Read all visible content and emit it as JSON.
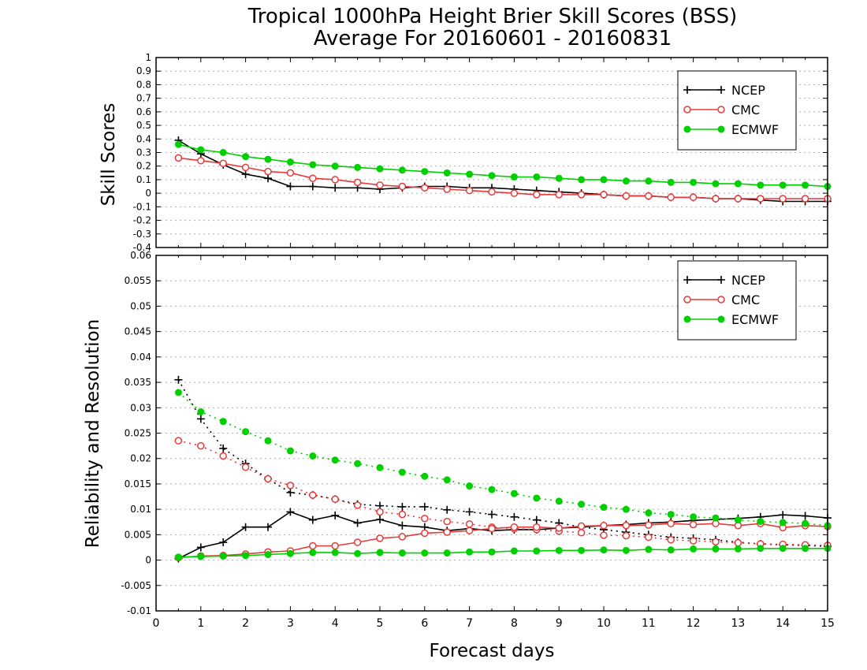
{
  "figure": {
    "title_line1": "Tropical 1000hPa Height Brier Skill Scores (BSS)",
    "title_line2": "Average For 20160601 - 20160831",
    "xlabel": "Forecast days"
  },
  "colors": {
    "NCEP": "#000000",
    "CMC": "#e8393a",
    "ECMWF": "#00d000",
    "grid": "#b0b0b0"
  },
  "chart_data": [
    {
      "type": "line",
      "ylabel": "Skill Scores",
      "xlim": [
        0,
        15
      ],
      "ylim": [
        -0.4,
        1
      ],
      "yticks": [
        -0.4,
        -0.3,
        -0.2,
        -0.1,
        0,
        0.1,
        0.2,
        0.3,
        0.4,
        0.5,
        0.6,
        0.7,
        0.8,
        0.9,
        1
      ],
      "ytick_labels": [
        "-0.4",
        "-0.3",
        "-0.2",
        "-0.1",
        "0",
        "0.1",
        "0.2",
        "0.3",
        "0.4",
        "0.5",
        "0.6",
        "0.7",
        "0.8",
        "0.9",
        "1"
      ],
      "grid": true,
      "legend": [
        "NCEP",
        "CMC",
        "ECMWF"
      ],
      "legend_position": "top-right",
      "x": [
        0.5,
        1,
        1.5,
        2,
        2.5,
        3,
        3.5,
        4,
        4.5,
        5,
        5.5,
        6,
        6.5,
        7,
        7.5,
        8,
        8.5,
        9,
        9.5,
        10,
        10.5,
        11,
        11.5,
        12,
        12.5,
        13,
        13.5,
        14,
        14.5,
        15
      ],
      "series": [
        {
          "name": "NCEP",
          "style": "solid",
          "marker": "plus",
          "values": [
            0.39,
            0.29,
            0.21,
            0.14,
            0.11,
            0.05,
            0.05,
            0.04,
            0.04,
            0.03,
            0.04,
            0.05,
            0.05,
            0.04,
            0.04,
            0.03,
            0.02,
            0.01,
            0.0,
            -0.01,
            -0.02,
            -0.02,
            -0.03,
            -0.03,
            -0.04,
            -0.04,
            -0.05,
            -0.06,
            -0.06,
            -0.06
          ]
        },
        {
          "name": "CMC",
          "style": "solid",
          "marker": "open-circle",
          "values": [
            0.26,
            0.24,
            0.22,
            0.19,
            0.16,
            0.15,
            0.11,
            0.1,
            0.08,
            0.06,
            0.05,
            0.04,
            0.03,
            0.02,
            0.01,
            0.0,
            -0.01,
            -0.01,
            -0.01,
            -0.01,
            -0.02,
            -0.02,
            -0.03,
            -0.03,
            -0.04,
            -0.04,
            -0.04,
            -0.04,
            -0.04,
            -0.04
          ]
        },
        {
          "name": "ECMWF",
          "style": "solid",
          "marker": "filled-circle",
          "values": [
            0.36,
            0.32,
            0.3,
            0.27,
            0.25,
            0.23,
            0.21,
            0.2,
            0.19,
            0.18,
            0.17,
            0.16,
            0.15,
            0.14,
            0.13,
            0.12,
            0.12,
            0.11,
            0.1,
            0.1,
            0.09,
            0.09,
            0.08,
            0.08,
            0.07,
            0.07,
            0.06,
            0.06,
            0.06,
            0.05
          ]
        }
      ]
    },
    {
      "type": "line",
      "ylabel": "Reliability and Resolution",
      "xlim": [
        0,
        15
      ],
      "ylim": [
        -0.01,
        0.06
      ],
      "yticks": [
        -0.01,
        -0.005,
        0,
        0.005,
        0.01,
        0.015,
        0.02,
        0.025,
        0.03,
        0.035,
        0.04,
        0.045,
        0.05,
        0.055,
        0.06
      ],
      "ytick_labels": [
        "-0.01",
        "-0.005",
        "0",
        "0.005",
        "0.01",
        "0.015",
        "0.02",
        "0.025",
        "0.03",
        "0.035",
        "0.04",
        "0.045",
        "0.05",
        "0.055",
        "0.06"
      ],
      "xticks": [
        0,
        1,
        2,
        3,
        4,
        5,
        6,
        7,
        8,
        9,
        10,
        11,
        12,
        13,
        14,
        15
      ],
      "xtick_labels": [
        "0",
        "1",
        "2",
        "3",
        "4",
        "5",
        "6",
        "7",
        "8",
        "9",
        "10",
        "11",
        "12",
        "13",
        "14",
        "15"
      ],
      "grid": true,
      "legend": [
        "NCEP",
        "CMC",
        "ECMWF"
      ],
      "legend_position": "top-right",
      "x": [
        0.5,
        1,
        1.5,
        2,
        2.5,
        3,
        3.5,
        4,
        4.5,
        5,
        5.5,
        6,
        6.5,
        7,
        7.5,
        8,
        8.5,
        9,
        9.5,
        10,
        10.5,
        11,
        11.5,
        12,
        12.5,
        13,
        13.5,
        14,
        14.5,
        15
      ],
      "series": [
        {
          "name": "NCEP",
          "style": "dotted",
          "marker": "plus",
          "values": [
            0.0355,
            0.0278,
            0.022,
            0.019,
            0.016,
            0.0133,
            0.0128,
            0.012,
            0.011,
            0.0107,
            0.0105,
            0.0105,
            0.0099,
            0.0095,
            0.009,
            0.0085,
            0.0079,
            0.0073,
            0.0065,
            0.006,
            0.0055,
            0.005,
            0.0045,
            0.0043,
            0.004,
            0.0035,
            0.0032,
            0.003,
            0.0029,
            0.0027
          ]
        },
        {
          "name": "NCEP",
          "style": "solid",
          "marker": "plus",
          "values": [
            0.0003,
            0.0025,
            0.0035,
            0.0065,
            0.0065,
            0.0095,
            0.0079,
            0.0088,
            0.0073,
            0.008,
            0.0068,
            0.0065,
            0.0058,
            0.0062,
            0.0058,
            0.006,
            0.006,
            0.0063,
            0.0065,
            0.0068,
            0.007,
            0.0073,
            0.0075,
            0.0078,
            0.008,
            0.0082,
            0.0085,
            0.0089,
            0.0087,
            0.0083
          ]
        },
        {
          "name": "CMC",
          "style": "dotted",
          "marker": "open-circle",
          "values": [
            0.0235,
            0.0225,
            0.0205,
            0.0183,
            0.016,
            0.0147,
            0.0128,
            0.012,
            0.0108,
            0.0095,
            0.009,
            0.0082,
            0.0076,
            0.0071,
            0.0065,
            0.0062,
            0.006,
            0.0057,
            0.0054,
            0.0049,
            0.0048,
            0.0045,
            0.004,
            0.0038,
            0.0036,
            0.0034,
            0.0032,
            0.0031,
            0.003,
            0.0029
          ]
        },
        {
          "name": "CMC",
          "style": "solid",
          "marker": "open-circle",
          "values": [
            0.0005,
            0.0008,
            0.0009,
            0.0012,
            0.0016,
            0.0018,
            0.0028,
            0.0028,
            0.0035,
            0.0043,
            0.0046,
            0.0053,
            0.0055,
            0.0058,
            0.0062,
            0.0065,
            0.0065,
            0.0063,
            0.0067,
            0.0068,
            0.0068,
            0.0069,
            0.0072,
            0.007,
            0.0072,
            0.0068,
            0.0072,
            0.0064,
            0.0068,
            0.0066
          ]
        },
        {
          "name": "ECMWF",
          "style": "dotted",
          "marker": "filled-circle",
          "values": [
            0.033,
            0.0292,
            0.0273,
            0.0253,
            0.0235,
            0.0215,
            0.0205,
            0.0197,
            0.019,
            0.0182,
            0.0173,
            0.0165,
            0.0158,
            0.0146,
            0.0139,
            0.0131,
            0.0122,
            0.0116,
            0.011,
            0.0104,
            0.01,
            0.0093,
            0.009,
            0.0085,
            0.0083,
            0.0079,
            0.0076,
            0.0074,
            0.0072,
            0.0068
          ]
        },
        {
          "name": "ECMWF",
          "style": "solid",
          "marker": "filled-circle",
          "values": [
            0.0006,
            0.0007,
            0.0008,
            0.0009,
            0.0011,
            0.0013,
            0.0015,
            0.0015,
            0.0013,
            0.0015,
            0.0014,
            0.0014,
            0.0014,
            0.0016,
            0.0016,
            0.0018,
            0.0018,
            0.0019,
            0.0019,
            0.002,
            0.0019,
            0.0021,
            0.002,
            0.0022,
            0.0022,
            0.0022,
            0.0023,
            0.0023,
            0.0023,
            0.0023
          ]
        }
      ]
    }
  ]
}
